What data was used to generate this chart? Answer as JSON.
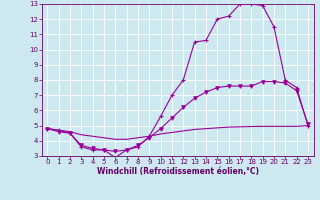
{
  "xlabel": "Windchill (Refroidissement éolien,°C)",
  "ylabel": "",
  "bg_color": "#cee8f0",
  "line_color": "#990099",
  "grid_color": "#ffffff",
  "xlim": [
    -0.5,
    23.5
  ],
  "ylim": [
    3,
    13
  ],
  "xticks": [
    0,
    1,
    2,
    3,
    4,
    5,
    6,
    7,
    8,
    9,
    10,
    11,
    12,
    13,
    14,
    15,
    16,
    17,
    18,
    19,
    20,
    21,
    22,
    23
  ],
  "yticks": [
    3,
    4,
    5,
    6,
    7,
    8,
    9,
    10,
    11,
    12,
    13
  ],
  "line1_x": [
    0,
    1,
    2,
    3,
    4,
    5,
    6,
    7,
    8,
    9,
    10,
    11,
    12,
    13,
    14,
    15,
    16,
    17,
    18,
    19,
    20,
    21,
    22,
    23
  ],
  "line1_y": [
    4.8,
    4.7,
    4.5,
    3.6,
    3.4,
    3.4,
    2.9,
    3.4,
    3.6,
    4.3,
    5.6,
    7.0,
    8.0,
    10.5,
    10.6,
    12.0,
    12.2,
    13.0,
    13.0,
    12.9,
    11.5,
    8.0,
    7.5,
    5.0
  ],
  "line2_x": [
    0,
    1,
    2,
    3,
    4,
    5,
    6,
    7,
    8,
    9,
    10,
    11,
    12,
    13,
    14,
    15,
    16,
    17,
    18,
    19,
    20,
    21,
    22,
    23
  ],
  "line2_y": [
    4.8,
    4.6,
    4.5,
    3.7,
    3.5,
    3.4,
    3.3,
    3.4,
    3.7,
    4.2,
    4.8,
    5.5,
    6.2,
    6.8,
    7.2,
    7.5,
    7.6,
    7.6,
    7.6,
    7.9,
    7.9,
    7.8,
    7.3,
    5.1
  ],
  "line3_x": [
    0,
    1,
    2,
    3,
    4,
    5,
    6,
    7,
    8,
    9,
    10,
    11,
    12,
    13,
    14,
    15,
    16,
    17,
    18,
    19,
    20,
    21,
    22,
    23
  ],
  "line3_y": [
    4.8,
    4.7,
    4.6,
    4.4,
    4.3,
    4.2,
    4.1,
    4.1,
    4.2,
    4.3,
    4.45,
    4.55,
    4.65,
    4.75,
    4.8,
    4.85,
    4.9,
    4.92,
    4.94,
    4.95,
    4.95,
    4.95,
    4.95,
    5.0
  ],
  "marker1": "+",
  "marker2": "v",
  "marker3": null
}
